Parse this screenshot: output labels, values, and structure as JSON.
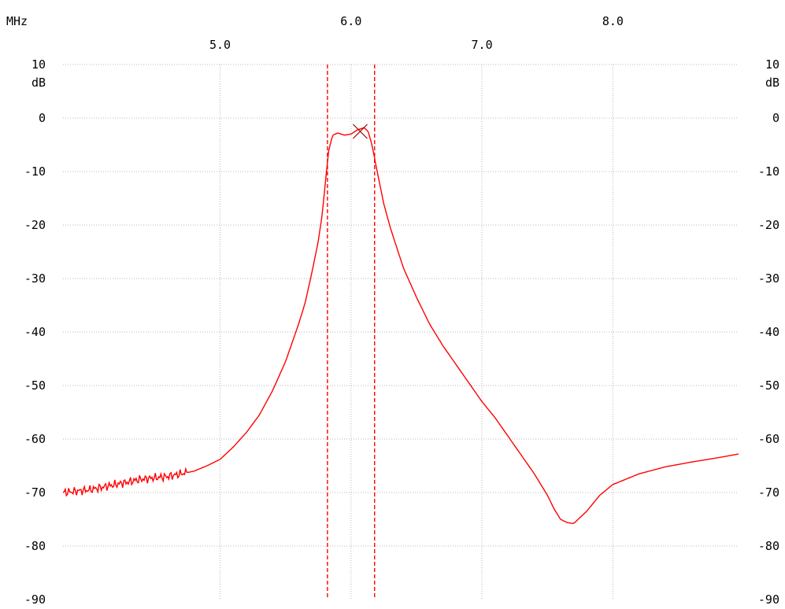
{
  "chart_data": {
    "type": "line",
    "title": "",
    "xlabel": "MHz",
    "ylabel": "dB",
    "xlim": [
      3.8,
      8.96
    ],
    "ylim": [
      -90,
      10
    ],
    "x_ticks_top_row": [
      "6.0",
      "8.0"
    ],
    "x_ticks_bottom_row": [
      "5.0",
      "7.0"
    ],
    "y_ticks": [
      "10",
      "0",
      "-10",
      "-20",
      "-30",
      "-40",
      "-50",
      "-60",
      "-70",
      "-80",
      "-90"
    ],
    "grid": true,
    "colors": {
      "trace": "#ff0000",
      "markers": "#ff0000",
      "marker_point": "#990000",
      "grid": "#b8b8b8"
    },
    "series": [
      {
        "x": [
          3.8,
          4.0,
          4.2,
          4.4,
          4.6,
          4.8,
          4.9,
          5.0,
          5.1,
          5.2,
          5.3,
          5.4,
          5.5,
          5.6,
          5.65,
          5.7,
          5.75,
          5.78,
          5.8,
          5.83,
          5.86,
          5.9,
          5.95,
          6.0,
          6.05,
          6.1,
          6.13,
          6.16,
          6.2,
          6.25,
          6.3,
          6.4,
          6.5,
          6.6,
          6.7,
          6.8,
          6.9,
          7.0,
          7.1,
          7.2,
          7.3,
          7.4,
          7.5,
          7.55,
          7.6,
          7.65,
          7.7,
          7.8,
          7.9,
          8.0,
          8.2,
          8.4,
          8.6,
          8.8,
          8.96
        ],
        "y": [
          -70,
          -69.5,
          -68.5,
          -67.5,
          -67,
          -66,
          -65,
          -63.8,
          -61.5,
          -58.8,
          -55.5,
          -51,
          -45.5,
          -38.5,
          -34.5,
          -29,
          -23,
          -18,
          -13,
          -6,
          -3.2,
          -2.8,
          -3.2,
          -3,
          -2.2,
          -1.8,
          -2.5,
          -5,
          -10,
          -16,
          -20.5,
          -28,
          -33.5,
          -38.5,
          -42.5,
          -46,
          -49.5,
          -53,
          -56,
          -59.5,
          -63,
          -66.5,
          -70.5,
          -73,
          -75,
          -75.6,
          -75.8,
          -73.5,
          -70.5,
          -68.5,
          -66.5,
          -65.2,
          -64.3,
          -63.5,
          -62.8
        ]
      }
    ],
    "markers": [
      5.82,
      6.18
    ],
    "marker_point": {
      "x": 6.07,
      "y": -2.5
    }
  }
}
